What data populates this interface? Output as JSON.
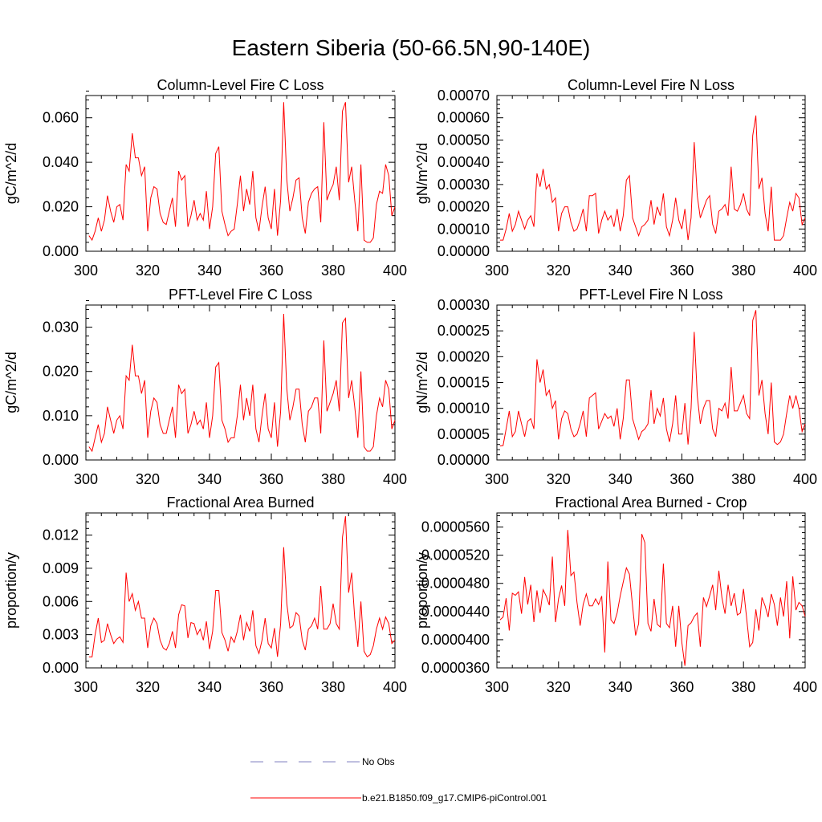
{
  "figure": {
    "title": "Eastern Siberia (50-66.5N,90-140E)",
    "line_color": "#ff0000",
    "obs_color": "#8080c0"
  },
  "legend": {
    "entries": [
      {
        "label": "No Obs",
        "style": "dashed",
        "color": "#8080c0"
      },
      {
        "label": "b.e21.B1850.f09_g17.CMIP6-piControl.001",
        "style": "solid",
        "color": "#ff0000"
      }
    ]
  },
  "chart_data": [
    {
      "type": "line",
      "title": "Column-Level Fire C Loss",
      "ylabel": "gC/m^2/d",
      "xlabel": "",
      "xlim": [
        300,
        400
      ],
      "ylim": [
        0,
        0.07
      ],
      "xticks": [
        300,
        320,
        340,
        360,
        380,
        400
      ],
      "yticks": [
        0,
        0.02,
        0.04,
        0.06
      ],
      "ytick_labels": [
        "0.000",
        "0.020",
        "0.040",
        "0.060"
      ],
      "x_start": 301,
      "series": [
        {
          "name": "b.e21.B1850.f09_g17.CMIP6-piControl.001",
          "values": [
            0.007,
            0.005,
            0.009,
            0.015,
            0.009,
            0.014,
            0.025,
            0.018,
            0.013,
            0.02,
            0.021,
            0.014,
            0.039,
            0.036,
            0.053,
            0.042,
            0.042,
            0.034,
            0.038,
            0.009,
            0.024,
            0.029,
            0.028,
            0.017,
            0.013,
            0.012,
            0.018,
            0.024,
            0.011,
            0.036,
            0.032,
            0.034,
            0.011,
            0.016,
            0.023,
            0.014,
            0.017,
            0.014,
            0.027,
            0.01,
            0.02,
            0.044,
            0.047,
            0.018,
            0.012,
            0.007,
            0.009,
            0.01,
            0.021,
            0.034,
            0.018,
            0.028,
            0.021,
            0.036,
            0.015,
            0.009,
            0.02,
            0.029,
            0.015,
            0.01,
            0.028,
            0.007,
            0.023,
            0.067,
            0.032,
            0.018,
            0.024,
            0.032,
            0.033,
            0.015,
            0.008,
            0.022,
            0.026,
            0.028,
            0.029,
            0.013,
            0.058,
            0.023,
            0.027,
            0.03,
            0.038,
            0.023,
            0.063,
            0.067,
            0.031,
            0.038,
            0.023,
            0.009,
            0.039,
            0.005,
            0.004,
            0.004,
            0.006,
            0.021,
            0.027,
            0.026,
            0.039,
            0.034,
            0.016,
            0.02
          ]
        }
      ]
    },
    {
      "type": "line",
      "title": "Column-Level Fire N Loss",
      "ylabel": "gN/m^2/d",
      "xlabel": "",
      "xlim": [
        300,
        400
      ],
      "ylim": [
        0,
        0.0007
      ],
      "xticks": [
        300,
        320,
        340,
        360,
        380,
        400
      ],
      "yticks": [
        0,
        0.0001,
        0.0002,
        0.0003,
        0.0004,
        0.0005,
        0.0006,
        0.0007
      ],
      "ytick_labels": [
        "0.00000",
        "0.00010",
        "0.00020",
        "0.00030",
        "0.00040",
        "0.00050",
        "0.00060",
        "0.00070"
      ],
      "x_start": 301,
      "series": [
        {
          "name": "b.e21.B1850.f09_g17.CMIP6-piControl.001",
          "values": [
            5e-05,
            5e-05,
            0.0001,
            0.00017,
            9e-05,
            0.00012,
            0.00018,
            0.00014,
            0.0001,
            0.00014,
            0.00016,
            0.00011,
            0.00035,
            0.00029,
            0.00037,
            0.00028,
            0.0003,
            0.00022,
            0.00024,
            9e-05,
            0.00017,
            0.0002,
            0.0002,
            0.00013,
            9e-05,
            0.0001,
            0.00014,
            0.00019,
            9e-05,
            0.00025,
            0.00025,
            0.00026,
            8e-05,
            0.00014,
            0.00018,
            0.00014,
            0.00016,
            0.00011,
            0.00019,
            9e-05,
            0.00016,
            0.00032,
            0.00034,
            0.00015,
            0.00011,
            7e-05,
            0.00011,
            0.00012,
            0.00014,
            0.00023,
            0.00012,
            0.0002,
            0.00016,
            0.00026,
            0.00011,
            7e-05,
            0.00014,
            0.00024,
            0.00014,
            0.0001,
            0.00019,
            5e-05,
            0.00015,
            0.00049,
            0.00025,
            0.00015,
            0.00019,
            0.00023,
            0.00025,
            0.00012,
            8e-05,
            0.00018,
            0.00019,
            0.00021,
            0.00016,
            0.00038,
            0.00019,
            0.00018,
            0.00021,
            0.00026,
            0.00019,
            0.00016,
            0.00052,
            0.00061,
            0.00028,
            0.00033,
            0.00017,
            9e-05,
            0.00029,
            5e-05,
            5e-05,
            5e-05,
            7e-05,
            0.00015,
            0.00022,
            0.00018,
            0.00026,
            0.00024,
            0.00012,
            0.00015
          ]
        }
      ]
    },
    {
      "type": "line",
      "title": "PFT-Level Fire C Loss",
      "ylabel": "gC/m^2/d",
      "xlabel": "",
      "xlim": [
        300,
        400
      ],
      "ylim": [
        0,
        0.035
      ],
      "xticks": [
        300,
        320,
        340,
        360,
        380,
        400
      ],
      "yticks": [
        0,
        0.01,
        0.02,
        0.03
      ],
      "ytick_labels": [
        "0.000",
        "0.010",
        "0.020",
        "0.030"
      ],
      "x_start": 301,
      "series": [
        {
          "name": "b.e21.B1850.f09_g17.CMIP6-piControl.001",
          "values": [
            0.003,
            0.002,
            0.005,
            0.008,
            0.004,
            0.006,
            0.012,
            0.009,
            0.006,
            0.009,
            0.01,
            0.007,
            0.019,
            0.018,
            0.026,
            0.019,
            0.019,
            0.015,
            0.018,
            0.005,
            0.011,
            0.014,
            0.013,
            0.008,
            0.006,
            0.006,
            0.009,
            0.012,
            0.005,
            0.017,
            0.015,
            0.016,
            0.006,
            0.008,
            0.011,
            0.008,
            0.009,
            0.007,
            0.013,
            0.005,
            0.01,
            0.021,
            0.022,
            0.009,
            0.007,
            0.004,
            0.005,
            0.005,
            0.01,
            0.017,
            0.009,
            0.014,
            0.01,
            0.017,
            0.007,
            0.004,
            0.01,
            0.015,
            0.007,
            0.005,
            0.013,
            0.003,
            0.011,
            0.033,
            0.016,
            0.009,
            0.012,
            0.016,
            0.016,
            0.008,
            0.004,
            0.011,
            0.012,
            0.014,
            0.014,
            0.006,
            0.027,
            0.011,
            0.013,
            0.015,
            0.018,
            0.011,
            0.031,
            0.032,
            0.014,
            0.018,
            0.012,
            0.005,
            0.02,
            0.003,
            0.002,
            0.002,
            0.003,
            0.01,
            0.014,
            0.012,
            0.018,
            0.016,
            0.007,
            0.009
          ]
        }
      ]
    },
    {
      "type": "line",
      "title": "PFT-Level Fire N Loss",
      "ylabel": "gN/m^2/d",
      "xlabel": "",
      "xlim": [
        300,
        400
      ],
      "ylim": [
        0,
        0.0003
      ],
      "xticks": [
        300,
        320,
        340,
        360,
        380,
        400
      ],
      "yticks": [
        0,
        5e-05,
        0.0001,
        0.00015,
        0.0002,
        0.00025,
        0.0003
      ],
      "ytick_labels": [
        "0.00000",
        "0.00005",
        "0.00010",
        "0.00015",
        "0.00020",
        "0.00025",
        "0.00030"
      ],
      "x_start": 301,
      "series": [
        {
          "name": "b.e21.B1850.f09_g17.CMIP6-piControl.001",
          "values": [
            2.7e-05,
            2.8e-05,
            6e-05,
            9.5e-05,
            4.5e-05,
            5.5e-05,
            9.5e-05,
            7e-05,
            4.5e-05,
            7.5e-05,
            8e-05,
            6e-05,
            0.000195,
            0.00015,
            0.000175,
            0.000125,
            0.000135,
            0.0001,
            0.000115,
            4e-05,
            8e-05,
            9.5e-05,
            9e-05,
            6e-05,
            4.5e-05,
            5e-05,
            7e-05,
            9.5e-05,
            4.5e-05,
            0.00012,
            0.000125,
            0.00013,
            6e-05,
            7.5e-05,
            9e-05,
            8e-05,
            8.5e-05,
            6.5e-05,
            0.0001,
            4e-05,
            8e-05,
            0.000155,
            0.000155,
            8e-05,
            6e-05,
            4e-05,
            5.5e-05,
            6e-05,
            7e-05,
            0.000135,
            7e-05,
            0.0001,
            8.5e-05,
            0.00012,
            6e-05,
            3.5e-05,
            7e-05,
            0.000125,
            5e-05,
            5e-05,
            0.00011,
            3e-05,
            0.0001,
            0.000248,
            0.000125,
            7e-05,
            0.0001,
            0.000115,
            0.000115,
            6e-05,
            4.5e-05,
            0.0001,
            9.5e-05,
            0.00011,
            8e-05,
            0.00018,
            9.5e-05,
            9.5e-05,
            0.00011,
            0.000125,
            9e-05,
            8e-05,
            0.00027,
            0.00029,
            0.000125,
            0.000155,
            9e-05,
            5e-05,
            0.00015,
            3.5e-05,
            3e-05,
            3.5e-05,
            5e-05,
            9e-05,
            0.000125,
            0.0001,
            0.000125,
            0.0001,
            5.5e-05,
            7e-05
          ]
        }
      ]
    },
    {
      "type": "line",
      "title": "Fractional Area Burned",
      "ylabel": "proportion/y",
      "xlabel": "",
      "xlim": [
        300,
        400
      ],
      "ylim": [
        0,
        0.014
      ],
      "xticks": [
        300,
        320,
        340,
        360,
        380,
        400
      ],
      "yticks": [
        0,
        0.003,
        0.006,
        0.009,
        0.012
      ],
      "ytick_labels": [
        "0.000",
        "0.003",
        "0.006",
        "0.009",
        "0.012"
      ],
      "x_start": 301,
      "series": [
        {
          "name": "b.e21.B1850.f09_g17.CMIP6-piControl.001",
          "values": [
            0.001,
            0.001,
            0.003,
            0.0045,
            0.0023,
            0.0025,
            0.004,
            0.003,
            0.0022,
            0.0026,
            0.0028,
            0.0023,
            0.0086,
            0.006,
            0.0067,
            0.0052,
            0.006,
            0.0045,
            0.0045,
            0.0018,
            0.0038,
            0.0045,
            0.004,
            0.0025,
            0.0018,
            0.0016,
            0.0022,
            0.0033,
            0.0018,
            0.0048,
            0.0057,
            0.0056,
            0.0027,
            0.0041,
            0.004,
            0.003,
            0.0035,
            0.0025,
            0.0042,
            0.0017,
            0.0033,
            0.007,
            0.007,
            0.0032,
            0.0025,
            0.0015,
            0.0028,
            0.0023,
            0.0033,
            0.0048,
            0.0025,
            0.0041,
            0.0033,
            0.0052,
            0.002,
            0.0013,
            0.0025,
            0.0045,
            0.0022,
            0.0018,
            0.0036,
            0.001,
            0.004,
            0.0109,
            0.0058,
            0.0036,
            0.0038,
            0.005,
            0.0047,
            0.0025,
            0.0016,
            0.0035,
            0.0038,
            0.0045,
            0.0035,
            0.0074,
            0.0035,
            0.0035,
            0.004,
            0.0058,
            0.004,
            0.0035,
            0.0118,
            0.0137,
            0.0068,
            0.0086,
            0.0045,
            0.0019,
            0.006,
            0.0015,
            0.001,
            0.0012,
            0.002,
            0.0035,
            0.0045,
            0.0035,
            0.0046,
            0.004,
            0.0022,
            0.0025
          ]
        }
      ]
    },
    {
      "type": "line",
      "title": "Fractional Area Burned - Crop",
      "ylabel": "proportion/y",
      "xlabel": "",
      "xlim": [
        300,
        400
      ],
      "ylim": [
        3.6e-05,
        5.8e-05
      ],
      "xticks": [
        300,
        320,
        340,
        360,
        380,
        400
      ],
      "yticks": [
        3.6e-05,
        4e-05,
        4.4e-05,
        4.8e-05,
        5.2e-05,
        5.6e-05
      ],
      "ytick_labels": [
        "0.0000360",
        "0.0000400",
        "0.0000440",
        "0.0000480",
        "0.0000520",
        "0.0000560"
      ],
      "x_start": 301,
      "series": [
        {
          "name": "b.e21.B1850.f09_g17.CMIP6-piControl.001",
          "values": [
            4.28e-05,
            4.32e-05,
            4.59e-05,
            4.13e-05,
            4.66e-05,
            4.63e-05,
            4.68e-05,
            4.37e-05,
            4.89e-05,
            4.5e-05,
            4.78e-05,
            4.25e-05,
            4.7e-05,
            4.38e-05,
            4.71e-05,
            4.62e-05,
            4.49e-05,
            5.18e-05,
            4.25e-05,
            4.58e-05,
            4.77e-05,
            4.48e-05,
            5.56e-05,
            4.91e-05,
            4.96e-05,
            4.53e-05,
            4.2e-05,
            4.5e-05,
            4.65e-05,
            4.48e-05,
            4.48e-05,
            4.58e-05,
            4.5e-05,
            4.62e-05,
            3.82e-05,
            5.11e-05,
            4.28e-05,
            4.23e-05,
            4.38e-05,
            4.62e-05,
            4.82e-05,
            5.02e-05,
            4.93e-05,
            4.48e-05,
            4.06e-05,
            4.23e-05,
            5.5e-05,
            5.38e-05,
            4.23e-05,
            4.12e-05,
            4.58e-05,
            4.22e-05,
            4.18e-05,
            5.08e-05,
            4.23e-05,
            4.17e-05,
            4.48e-05,
            3.9e-05,
            4.48e-05,
            3.96e-05,
            3.63e-05,
            4.2e-05,
            4.24e-05,
            4.33e-05,
            4.38e-05,
            3.9e-05,
            4.6e-05,
            4.47e-05,
            4.62e-05,
            4.78e-05,
            4.42e-05,
            4.98e-05,
            4.6e-05,
            4.37e-05,
            4.78e-05,
            4.48e-05,
            4.66e-05,
            4.35e-05,
            4.38e-05,
            4.72e-05,
            4.32e-05,
            3.9e-05,
            3.96e-05,
            4.43e-05,
            4.13e-05,
            4.6e-05,
            4.48e-05,
            4.32e-05,
            4.65e-05,
            4.5e-05,
            4.2e-05,
            4.6e-05,
            4.33e-05,
            4.83e-05,
            4.02e-05,
            4.9e-05,
            4.42e-05,
            4.53e-05,
            4.48e-05,
            4.33e-05
          ]
        }
      ]
    }
  ]
}
